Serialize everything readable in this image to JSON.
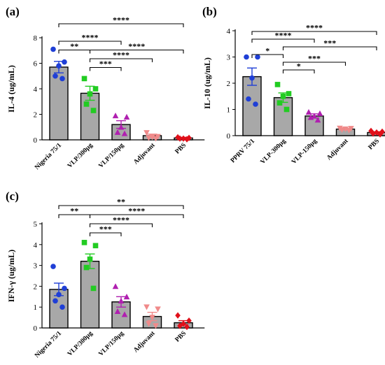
{
  "chart_data": [
    {
      "type": "bar",
      "panel_label": "(a)",
      "ylabel": "IL-4 (ug/mL)",
      "categories": [
        "Nigeria 75/1",
        "VLP/300µg",
        "VLP/150µg",
        "Adjuvant",
        "PBS"
      ],
      "values": [
        5.7,
        3.65,
        1.2,
        0.33,
        0.15
      ],
      "errors": [
        0.45,
        0.55,
        0.3,
        0.12,
        0.05
      ],
      "points": [
        [
          7.1,
          6.1,
          5.8,
          5.0,
          4.8
        ],
        [
          4.8,
          4.0,
          3.6,
          2.8,
          2.3
        ],
        [
          1.9,
          1.8,
          1.0,
          0.6,
          0.5
        ],
        [
          0.55,
          0.25,
          0.2,
          0.15,
          0.1
        ],
        [
          0.2,
          0.15,
          0.1,
          0.1,
          0.05
        ]
      ],
      "ylim": [
        0,
        8
      ],
      "yticks": [
        "0",
        "2",
        "4",
        "6",
        "8"
      ],
      "comparisons": [
        {
          "from": 0,
          "to": 1,
          "label": "**"
        },
        {
          "from": 0,
          "to": 2,
          "label": "****"
        },
        {
          "from": 0,
          "to": 4,
          "label": "****"
        },
        {
          "from": 1,
          "to": 2,
          "label": "***"
        },
        {
          "from": 1,
          "to": 3,
          "label": "****"
        },
        {
          "from": 1,
          "to": 4,
          "label": "****"
        }
      ]
    },
    {
      "type": "bar",
      "panel_label": "(b)",
      "ylabel": "IL-10 (ug/mL)",
      "categories": [
        "PPRV 75/1",
        "VLP-300µg",
        "VLP-150µg",
        "Adjuvant",
        "PBS"
      ],
      "values": [
        2.25,
        1.45,
        0.75,
        0.25,
        0.12
      ],
      "errors": [
        0.33,
        0.18,
        0.08,
        0.03,
        0.03
      ],
      "points": [
        [
          3.0,
          3.0,
          2.2,
          1.4,
          1.2
        ],
        [
          1.95,
          1.6,
          1.5,
          1.25,
          1.0
        ],
        [
          0.9,
          0.85,
          0.75,
          0.7,
          0.6
        ],
        [
          0.28,
          0.27,
          0.25,
          0.22,
          0.2
        ],
        [
          0.18,
          0.15,
          0.12,
          0.08,
          0.05
        ]
      ],
      "ylim": [
        0,
        4
      ],
      "yticks": [
        "0",
        "1",
        "2",
        "3",
        "4"
      ],
      "comparisons": [
        {
          "from": 0,
          "to": 1,
          "label": "*"
        },
        {
          "from": 0,
          "to": 2,
          "label": "****"
        },
        {
          "from": 0,
          "to": 4,
          "label": "****"
        },
        {
          "from": 1,
          "to": 2,
          "label": "*"
        },
        {
          "from": 1,
          "to": 3,
          "label": "***"
        },
        {
          "from": 1,
          "to": 4,
          "label": "***"
        }
      ]
    },
    {
      "type": "bar",
      "panel_label": "(c)",
      "ylabel": "IFN-γ (ug/mL)",
      "categories": [
        "Nigeria 75/1",
        "VLP/300µg",
        "VLP/150µg",
        "Adjuvant",
        "PBS"
      ],
      "values": [
        1.85,
        3.2,
        1.25,
        0.55,
        0.25
      ],
      "errors": [
        0.3,
        0.35,
        0.25,
        0.2,
        0.1
      ],
      "points": [
        [
          2.95,
          1.9,
          1.6,
          1.3,
          1.0
        ],
        [
          4.1,
          3.95,
          3.3,
          2.9,
          1.9
        ],
        [
          2.0,
          1.5,
          1.3,
          0.8,
          0.65
        ],
        [
          1.0,
          0.9,
          0.5,
          0.2,
          0.1
        ],
        [
          0.6,
          0.35,
          0.2,
          0.1,
          0.05
        ]
      ],
      "ylim": [
        0,
        5
      ],
      "yticks": [
        "0",
        "1",
        "2",
        "3",
        "4",
        "5"
      ],
      "comparisons": [
        {
          "from": 0,
          "to": 1,
          "label": "**"
        },
        {
          "from": 0,
          "to": 4,
          "label": "**"
        },
        {
          "from": 1,
          "to": 2,
          "label": "***"
        },
        {
          "from": 1,
          "to": 3,
          "label": "****"
        },
        {
          "from": 1,
          "to": 4,
          "label": "****"
        }
      ]
    }
  ],
  "series_colors": [
    "#1f3fd6",
    "#22cc22",
    "#b020b0",
    "#f08a8a",
    "#e0101a"
  ],
  "marker_shapes": [
    "circle",
    "square",
    "triangle-up",
    "triangle-down",
    "diamond"
  ],
  "bar_color": "#a8a8a8"
}
